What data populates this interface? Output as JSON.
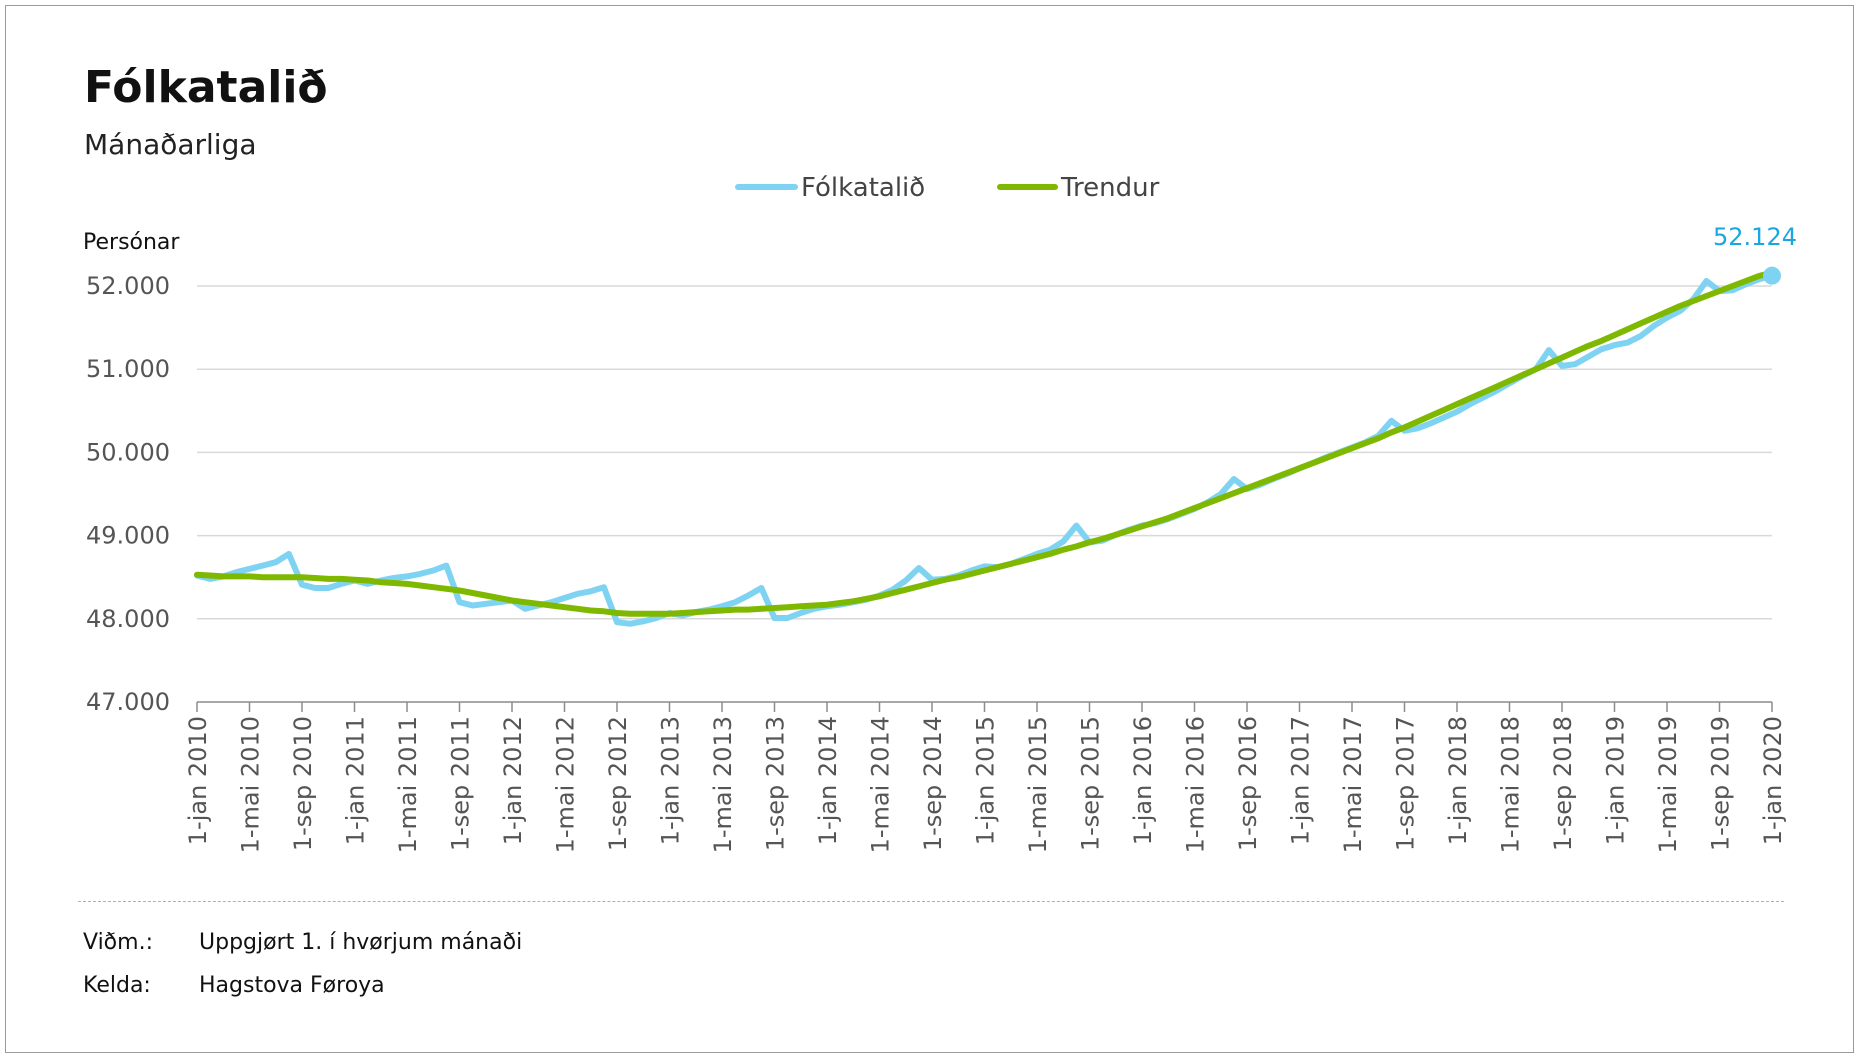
{
  "title": "Fólkatalið",
  "subtitle": "Mánaðarliga",
  "notes": [
    {
      "key": "Viðm.:",
      "value": "Uppgjørt 1. í hvørjum mánaði"
    },
    {
      "key": "Kelda:",
      "value": "Hagstova Føroya"
    }
  ],
  "colors": {
    "population": "#7fd3f2",
    "trend": "#7fb800",
    "endLabel": "#1aa6e0",
    "grid": "#d9d9d9",
    "axis": "#8c8c8c"
  },
  "chart_data": {
    "type": "line",
    "title": "Fólkatalið",
    "subtitle": "Mánaðarliga",
    "ylabel": "Persónar",
    "xlabel": "",
    "ylim": [
      47000,
      52000
    ],
    "yticks": [
      47000,
      48000,
      49000,
      50000,
      51000,
      52000
    ],
    "ytick_labels": [
      "47.000",
      "48.000",
      "49.000",
      "50.000",
      "51.000",
      "52.000"
    ],
    "x_start": "2010-01",
    "x_end": "2020-01",
    "xtick_labels": [
      "1-jan 2010",
      "1-mai 2010",
      "1-sep 2010",
      "1-jan 2011",
      "1-mai 2011",
      "1-sep 2011",
      "1-jan 2012",
      "1-mai 2012",
      "1-sep 2012",
      "1-jan 2013",
      "1-mai 2013",
      "1-sep 2013",
      "1-jan 2014",
      "1-mai 2014",
      "1-sep 2014",
      "1-jan 2015",
      "1-mai 2015",
      "1-sep 2015",
      "1-jan 2016",
      "1-mai 2016",
      "1-sep 2016",
      "1-jan 2017",
      "1-mai 2017",
      "1-sep 2017",
      "1-jan 2018",
      "1-mai 2018",
      "1-sep 2018",
      "1-jan 2019",
      "1-mai 2019",
      "1-sep 2019",
      "1-jan 2020"
    ],
    "grid": true,
    "legend": "top-center",
    "end_label": "52.124",
    "series": [
      {
        "name": "Fólkatalið",
        "values": [
          48520,
          48480,
          48510,
          48560,
          48600,
          48640,
          48680,
          48780,
          48410,
          48370,
          48370,
          48420,
          48460,
          48420,
          48460,
          48490,
          48510,
          48540,
          48580,
          48640,
          48200,
          48160,
          48180,
          48200,
          48220,
          48120,
          48160,
          48200,
          48250,
          48300,
          48330,
          48380,
          47960,
          47940,
          47970,
          48010,
          48070,
          48040,
          48080,
          48110,
          48150,
          48200,
          48280,
          48370,
          48010,
          48010,
          48070,
          48120,
          48150,
          48170,
          48200,
          48230,
          48280,
          48350,
          48460,
          48610,
          48470,
          48480,
          48520,
          48580,
          48630,
          48620,
          48660,
          48720,
          48780,
          48830,
          48930,
          49120,
          48920,
          48940,
          49010,
          49070,
          49120,
          49150,
          49200,
          49260,
          49320,
          49400,
          49500,
          49680,
          49560,
          49610,
          49680,
          49740,
          49810,
          49870,
          49940,
          50000,
          50060,
          50120,
          50200,
          50380,
          50260,
          50290,
          50350,
          50420,
          50490,
          50580,
          50660,
          50740,
          50830,
          50920,
          51000,
          51230,
          51040,
          51060,
          51150,
          51240,
          51290,
          51320,
          51400,
          51520,
          51620,
          51700,
          51840,
          52060,
          51940,
          51950,
          52020,
          52080,
          52124
        ]
      },
      {
        "name": "Trendur",
        "values": [
          48530,
          48520,
          48510,
          48510,
          48510,
          48500,
          48500,
          48500,
          48500,
          48490,
          48480,
          48480,
          48470,
          48460,
          48440,
          48430,
          48420,
          48400,
          48380,
          48360,
          48340,
          48310,
          48280,
          48250,
          48220,
          48200,
          48180,
          48160,
          48140,
          48120,
          48100,
          48090,
          48070,
          48060,
          48060,
          48060,
          48060,
          48070,
          48080,
          48090,
          48100,
          48110,
          48110,
          48120,
          48130,
          48140,
          48150,
          48160,
          48170,
          48190,
          48210,
          48240,
          48270,
          48310,
          48350,
          48390,
          48430,
          48470,
          48500,
          48540,
          48580,
          48620,
          48660,
          48700,
          48740,
          48780,
          48830,
          48870,
          48920,
          48960,
          49010,
          49060,
          49110,
          49160,
          49210,
          49270,
          49330,
          49390,
          49450,
          49510,
          49570,
          49630,
          49690,
          49750,
          49810,
          49870,
          49930,
          49990,
          50050,
          50110,
          50170,
          50240,
          50300,
          50370,
          50440,
          50510,
          50580,
          50650,
          50720,
          50790,
          50860,
          50930,
          51000,
          51070,
          51140,
          51210,
          51280,
          51340,
          51410,
          51480,
          51550,
          51620,
          51690,
          51760,
          51820,
          51880,
          51940,
          52000,
          52060,
          52120,
          52160
        ]
      }
    ]
  }
}
